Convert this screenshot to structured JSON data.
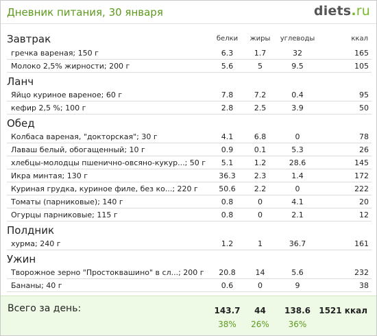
{
  "header": {
    "title": "Дневник питания, 30 января",
    "logo": {
      "name": "diets",
      "dot": ".",
      "tld": "ru"
    }
  },
  "columns": {
    "protein": "белки",
    "fat": "жиры",
    "carbs": "углеводы",
    "kcal": "ккал"
  },
  "meals": [
    {
      "name": "Завтрак",
      "items": [
        {
          "name": "гречка вареная; 150 г",
          "protein": "6.3",
          "fat": "1.7",
          "carbs": "32",
          "kcal": "165"
        },
        {
          "name": "Молоко 2,5% жирности; 200 г",
          "protein": "5.6",
          "fat": "5",
          "carbs": "9.5",
          "kcal": "105"
        }
      ]
    },
    {
      "name": "Ланч",
      "items": [
        {
          "name": "Яйцо куриное вареное; 60 г",
          "protein": "7.8",
          "fat": "7.2",
          "carbs": "0.4",
          "kcal": "95"
        },
        {
          "name": "кефир 2,5 %; 100 г",
          "protein": "2.8",
          "fat": "2.5",
          "carbs": "3.9",
          "kcal": "50"
        }
      ]
    },
    {
      "name": "Обед",
      "items": [
        {
          "name": "Колбаса вареная, \"докторская\"; 30 г",
          "protein": "4.1",
          "fat": "6.8",
          "carbs": "0",
          "kcal": "78"
        },
        {
          "name": "Лаваш белый, обогащенный; 10 г",
          "protein": "0.9",
          "fat": "0.1",
          "carbs": "5.3",
          "kcal": "26"
        },
        {
          "name": "хлебцы-молодцы пшенично-овсяно-кукур...; 50 г",
          "protein": "5.1",
          "fat": "1.2",
          "carbs": "28.6",
          "kcal": "145"
        },
        {
          "name": "Икра минтая; 130 г",
          "protein": "36.3",
          "fat": "2.3",
          "carbs": "1.4",
          "kcal": "172"
        },
        {
          "name": "Куриная грудка, куриное филе, без ко...; 220 г",
          "protein": "50.6",
          "fat": "2.2",
          "carbs": "0",
          "kcal": "222"
        },
        {
          "name": "Томаты (парниковые); 140 г",
          "protein": "0.8",
          "fat": "0",
          "carbs": "4.1",
          "kcal": "20"
        },
        {
          "name": "Огурцы парниковые; 115 г",
          "protein": "0.8",
          "fat": "0",
          "carbs": "2.1",
          "kcal": "12"
        }
      ]
    },
    {
      "name": "Полдник",
      "items": [
        {
          "name": "хурма; 240 г",
          "protein": "1.2",
          "fat": "1",
          "carbs": "36.7",
          "kcal": "161"
        }
      ]
    },
    {
      "name": "Ужин",
      "items": [
        {
          "name": "Творожное зерно \"Простоквашино\" в сл...; 200 г",
          "protein": "20.8",
          "fat": "14",
          "carbs": "5.6",
          "kcal": "232"
        },
        {
          "name": "Бананы; 40 г",
          "protein": "0.6",
          "fat": "0",
          "carbs": "9",
          "kcal": "38"
        }
      ]
    }
  ],
  "totals": {
    "label": "Всего за день:",
    "protein": "143.7",
    "fat": "44",
    "carbs": "138.6",
    "kcal": "1521 ккал",
    "protein_pct": "38%",
    "fat_pct": "26%",
    "carbs_pct": "36%"
  },
  "colors": {
    "accent": "#5d9a1e",
    "logo_dot": "#77b82a",
    "totals_bg": "#eefae6",
    "row_border": "#dcdcdc"
  }
}
